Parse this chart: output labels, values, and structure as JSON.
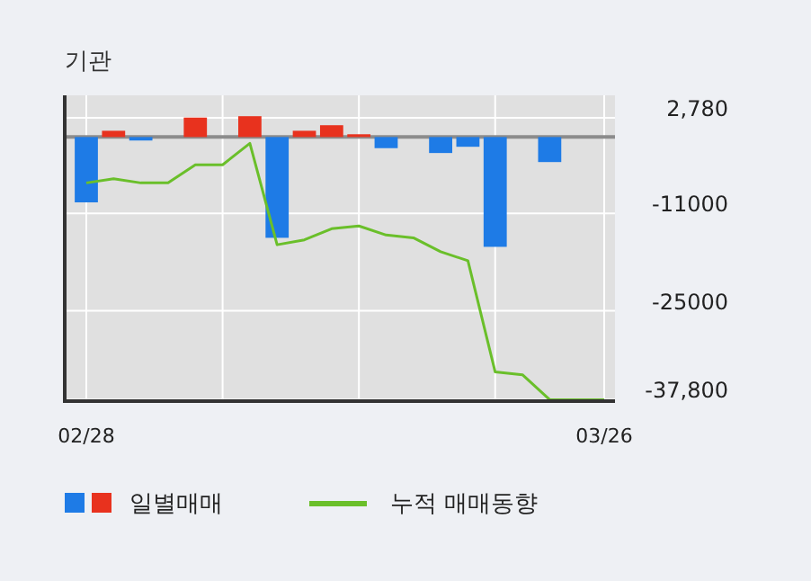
{
  "chart_data": {
    "type": "bar",
    "title": "기관",
    "categories": [
      "02/28",
      null,
      null,
      null,
      null,
      null,
      null,
      null,
      null,
      null,
      null,
      null,
      null,
      null,
      null,
      null,
      null,
      null,
      null,
      "03/26"
    ],
    "series": [
      {
        "name": "일별매매",
        "colors": [
          "#1e7be6",
          "#e8321e",
          "#1e7be6",
          null,
          "#e8321e",
          null,
          "#e8321e",
          "#1e7be6",
          "#e8321e",
          "#e8321e",
          "#e8321e",
          "#1e7be6",
          null,
          "#1e7be6",
          "#1e7be6",
          "#1e7be6",
          null,
          "#1e7be6",
          null,
          null
        ],
        "values": [
          -9400,
          900,
          -500,
          null,
          2800,
          null,
          3000,
          -14500,
          900,
          1700,
          400,
          -1600,
          null,
          -2300,
          -1400,
          -15800,
          null,
          -3600,
          null,
          null
        ]
      },
      {
        "name": "누적 매매동향",
        "type": "line",
        "color": "#6abf2a",
        "values": [
          -6600,
          -6000,
          -6600,
          -6600,
          -4000,
          -4000,
          -900,
          -15500,
          -14800,
          -13200,
          -12800,
          -14100,
          -14500,
          -16500,
          -17800,
          -33800,
          -34200,
          -37800,
          -37800,
          -37800
        ]
      }
    ],
    "ylim": [
      -38000,
      6000
    ],
    "yticks": [
      {
        "value": 2780,
        "label": "2,780"
      },
      {
        "value": -11000,
        "label": "-11000"
      },
      {
        "value": -25000,
        "label": "-25000"
      },
      {
        "value": -37800,
        "label": "-37,800"
      }
    ],
    "ref_lines": [
      {
        "axis": "y",
        "value": 0,
        "color": "#8c8c8c"
      }
    ],
    "grid": true,
    "legend": "bottom"
  }
}
